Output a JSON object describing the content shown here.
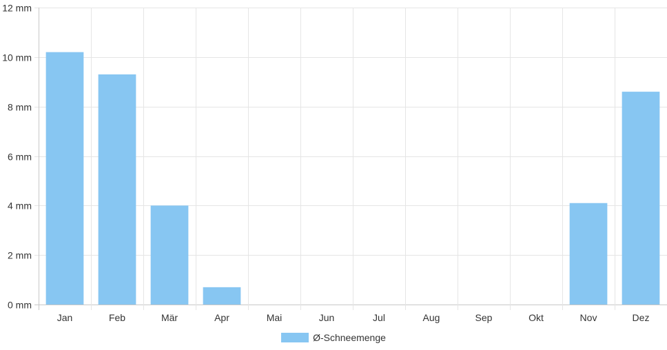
{
  "chart_data": {
    "type": "bar",
    "categories": [
      "Jan",
      "Feb",
      "Mär",
      "Apr",
      "Mai",
      "Jun",
      "Jul",
      "Aug",
      "Sep",
      "Okt",
      "Nov",
      "Dez"
    ],
    "series": [
      {
        "name": "Ø-Schneemenge",
        "values": [
          10.2,
          9.3,
          4.0,
          0.7,
          0,
          0,
          0,
          0,
          0,
          0,
          4.1,
          8.6
        ],
        "color": "#87c6f2"
      }
    ],
    "y_ticks": [
      0,
      2,
      4,
      6,
      8,
      10,
      12
    ],
    "y_unit": "mm",
    "ylim": [
      0,
      12
    ],
    "grid": true,
    "legend_position": "bottom"
  },
  "legend": {
    "label": "Ø-Schneemenge",
    "color": "#87c6f2"
  }
}
